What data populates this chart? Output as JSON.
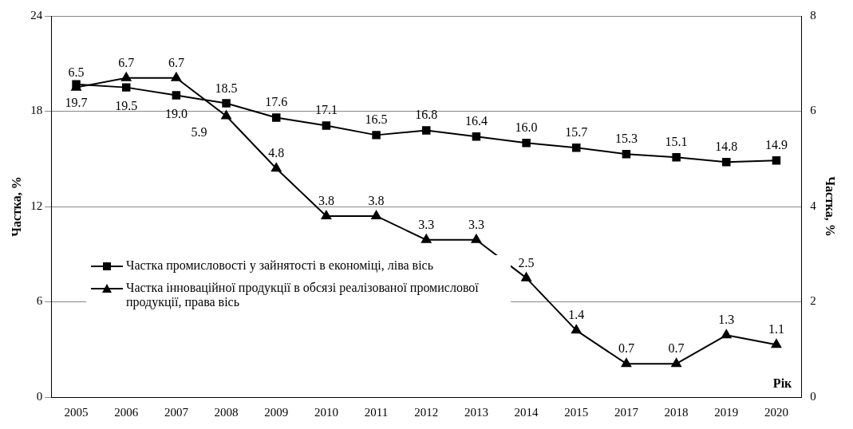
{
  "chart_data": {
    "type": "line",
    "ylabel": "Частка, %",
    "y2label": "Частка, %",
    "xlabel": "Рік",
    "categories": [
      "2005",
      "2006",
      "2007",
      "2008",
      "2009",
      "2010",
      "2011",
      "2012",
      "2013",
      "2014",
      "2015",
      "2017",
      "2018",
      "2019",
      "2020"
    ],
    "series": [
      {
        "name": "Частка промисловості у зайнятості в економіці, ліва вісь",
        "color": "#000000",
        "marker": "square",
        "values": [
          19.7,
          19.5,
          19.0,
          18.5,
          17.6,
          17.1,
          16.5,
          16.8,
          16.4,
          16.0,
          15.7,
          15.3,
          15.1,
          14.8,
          14.9
        ],
        "value_labels": [
          "19.7",
          "19.5",
          "19.0",
          "18.5",
          "17.6",
          "17.1",
          "16.5",
          "16.8",
          "16.4",
          "16.0",
          "15.7",
          "15.3",
          "15.1",
          "14.8",
          "14.9"
        ]
      },
      {
        "name": "Частка інноваційної продукції в обсязі реалізованої промислової продукції, права вісь",
        "color": "#000000",
        "marker": "triangle",
        "axis": "y2",
        "values": [
          6.5,
          6.7,
          6.7,
          5.9,
          4.8,
          3.8,
          3.8,
          3.3,
          3.3,
          2.5,
          1.4,
          0.7,
          0.7,
          1.3,
          1.1
        ],
        "value_labels": [
          "6.5",
          "6.7",
          "6.7",
          "5.9",
          "4.8",
          "3.8",
          "3.8",
          "3.3",
          "3.3",
          "2.5",
          "1.4",
          "0.7",
          "0.7",
          "1.3",
          "1.1"
        ]
      }
    ],
    "ylim": [
      0,
      24
    ],
    "yticks": [
      0,
      6,
      12,
      18,
      24
    ],
    "y2lim": [
      0,
      8
    ],
    "y2ticks": [
      0,
      2,
      4,
      6,
      8
    ],
    "grid": "y",
    "legend": "bottom left",
    "line_style": "solid"
  }
}
